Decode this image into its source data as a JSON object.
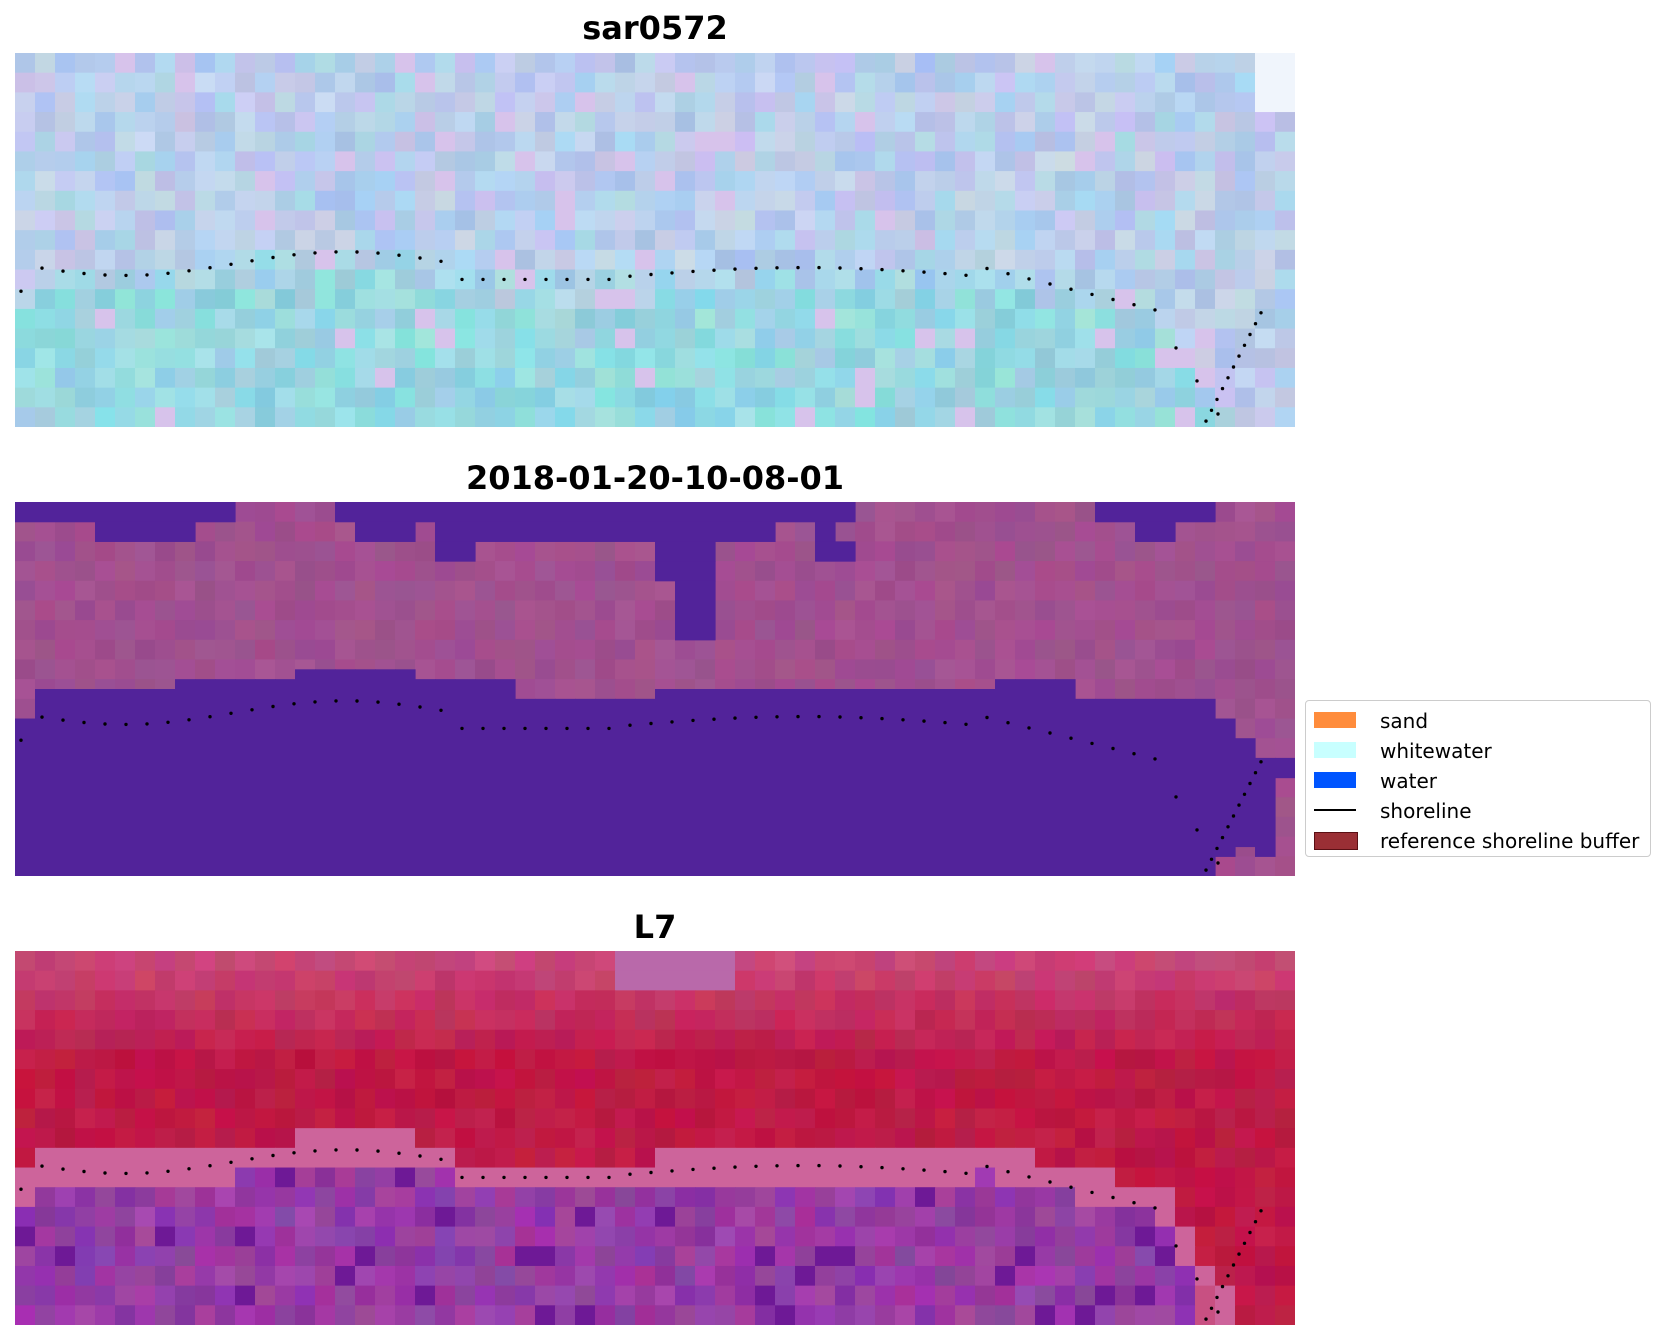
{
  "panels": [
    {
      "title": "sar0572",
      "style": "rgb"
    },
    {
      "title": "2018-01-20-10-08-01",
      "style": "classified"
    },
    {
      "title": "L7",
      "style": "falsecolor"
    }
  ],
  "legend": [
    {
      "label": "sand",
      "color": "#ff8c3c",
      "kind": "patch"
    },
    {
      "label": "whitewater",
      "color": "#c8ffff",
      "kind": "patch"
    },
    {
      "label": "water",
      "color": "#0055ff",
      "kind": "patch"
    },
    {
      "label": "shoreline",
      "color": "#000000",
      "kind": "line"
    },
    {
      "label": "reference shoreline buffer",
      "color": "#9a2f35",
      "kind": "patch-outline"
    }
  ],
  "colors": {
    "classified_water": "#52239a",
    "classified_land": "#a1508f",
    "shoreline": "#000000"
  }
}
